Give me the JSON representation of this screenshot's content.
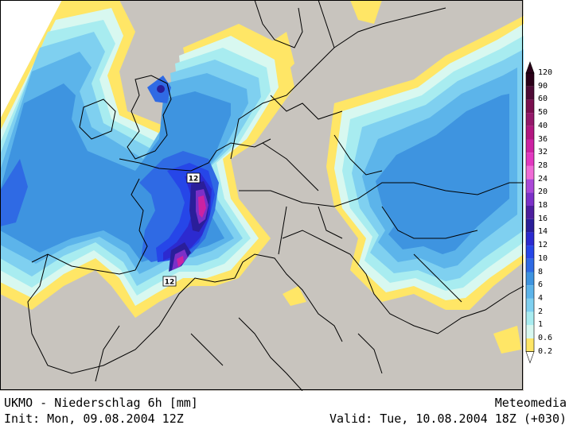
{
  "map": {
    "land_color": "#c8c4be",
    "sea_color": "#c8c4be",
    "border_color": "#000000",
    "contour_labels": [
      "12",
      "12"
    ]
  },
  "legend": {
    "levels": [
      "120",
      "90",
      "60",
      "50",
      "40",
      "36",
      "32",
      "28",
      "24",
      "20",
      "18",
      "16",
      "14",
      "12",
      "10",
      "8",
      "6",
      "4",
      "2",
      "1",
      "0.6",
      "0.2"
    ],
    "colors": [
      "#2b0018",
      "#4e0a35",
      "#7a0f4f",
      "#94186a",
      "#b21680",
      "#cc22a2",
      "#e238c0",
      "#f06bd6",
      "#ab48d8",
      "#7c30c8",
      "#4d1e9e",
      "#2a1e9a",
      "#2c2ad0",
      "#2646e8",
      "#2f6ae4",
      "#3e94e0",
      "#5cb4ea",
      "#7fd0f0",
      "#a8ecf0",
      "#d8f8f0",
      "#ffe666"
    ],
    "top_arrow_color": "#2b0018",
    "bottom_arrow_color": "#ffffff"
  },
  "footer": {
    "title": "UKMO - Niederschlag 6h [mm]",
    "init": "Init: Mon, 09.08.2004 12Z",
    "source": "Meteomedia",
    "valid": "Valid: Tue, 10.08.2004 18Z (+030)"
  }
}
